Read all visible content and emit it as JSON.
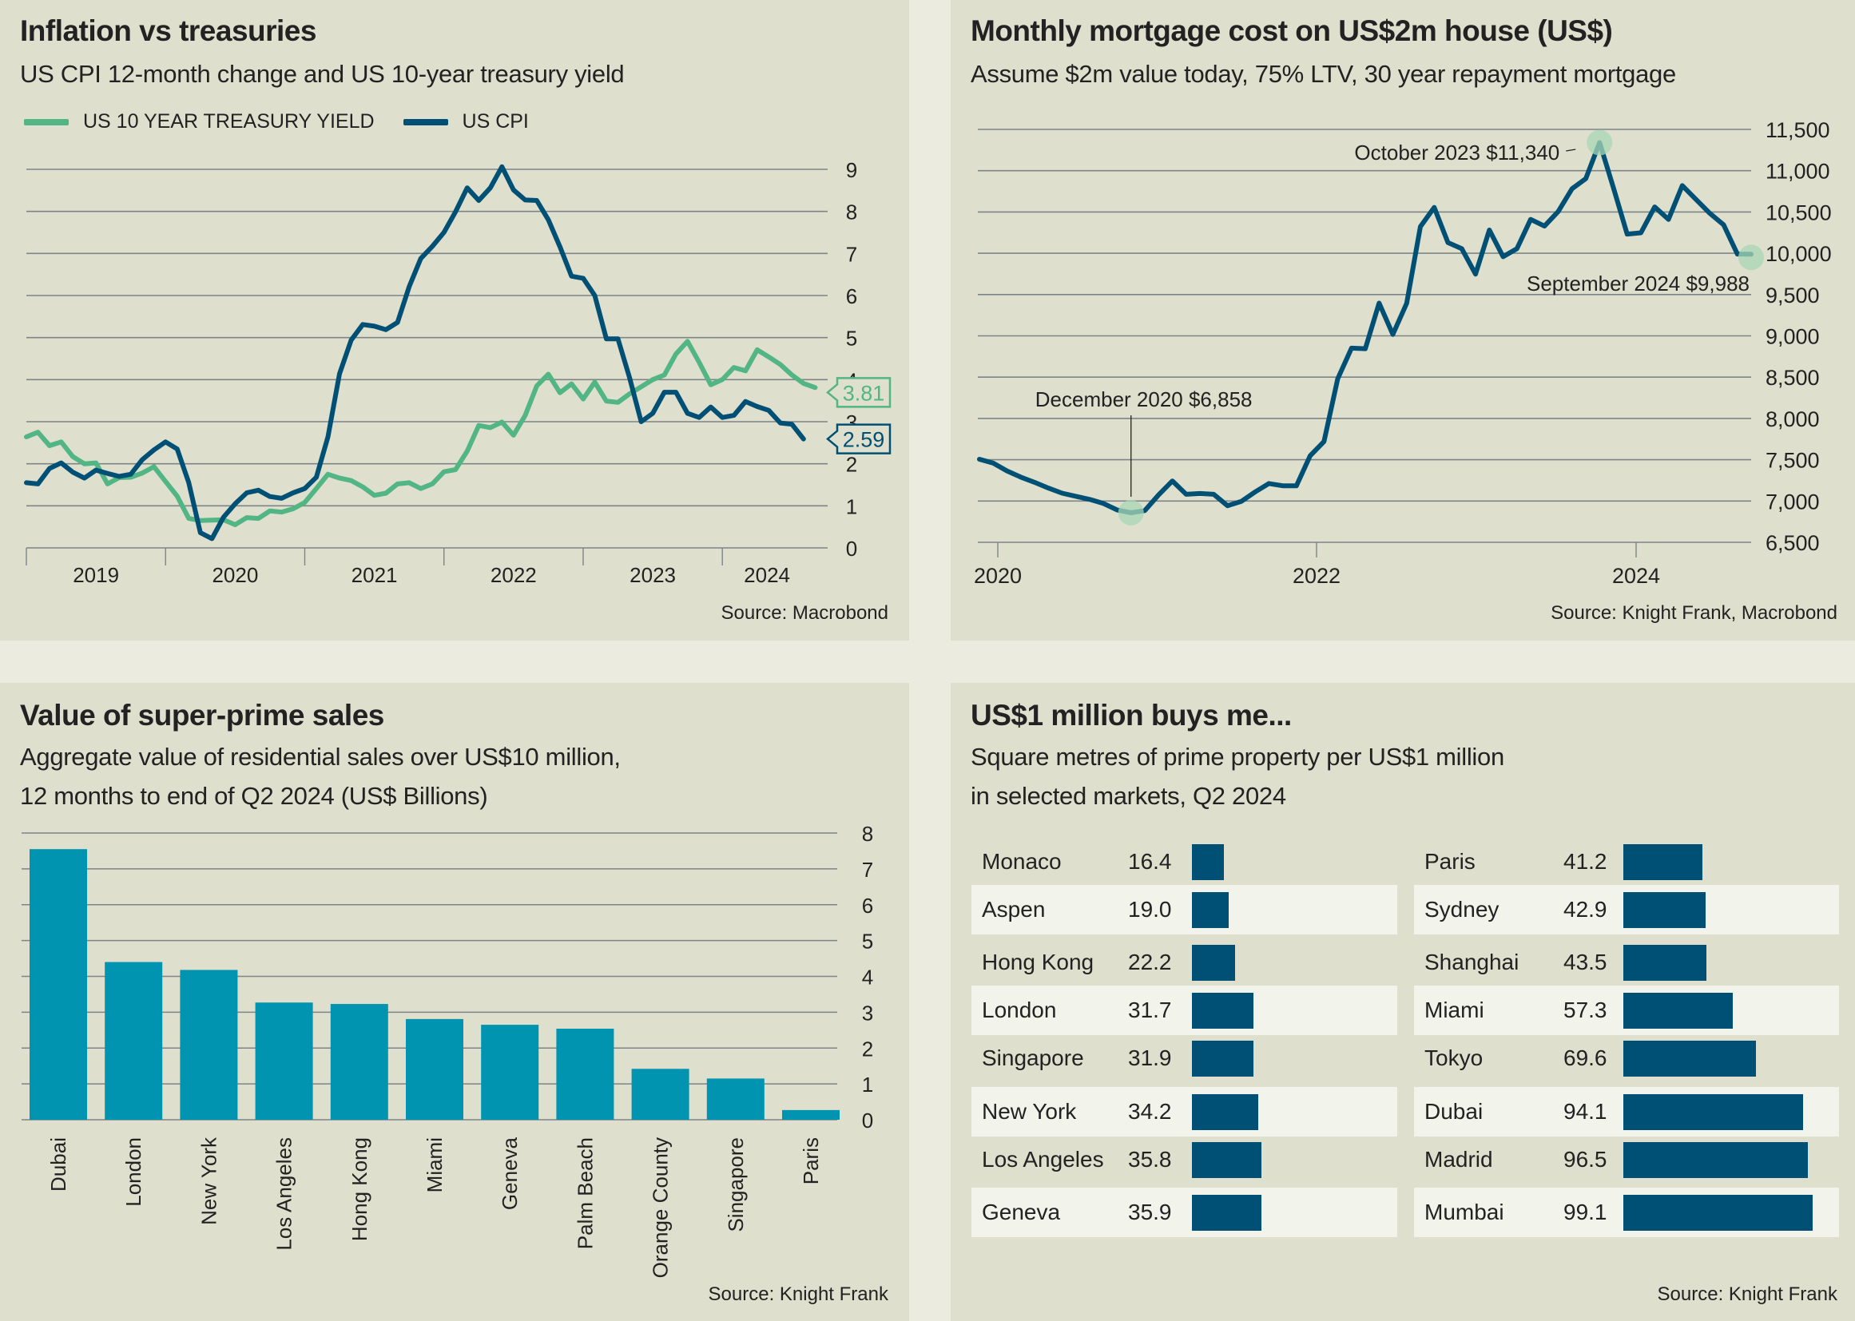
{
  "colors": {
    "treasury": "#52b584",
    "cpi": "#005075",
    "bar_teal": "#0094b0",
    "bar_navy": "#005075",
    "grid": "#7d8489",
    "highlight": "#a9d7b4"
  },
  "chart_data": [
    {
      "id": "inflation",
      "type": "line",
      "title": "Inflation vs treasuries",
      "subtitle": "US CPI 12-month change and US 10-year treasury yield",
      "source": "Source: Macrobond",
      "legend_position": "top-left",
      "x_start": "2019-01",
      "x_ticks": [
        "2019",
        "2020",
        "2021",
        "2022",
        "2023",
        "2024"
      ],
      "ylim": [
        0,
        9
      ],
      "yticks": [
        0,
        1,
        2,
        3,
        4,
        5,
        6,
        7,
        8,
        9
      ],
      "grid": true,
      "series": [
        {
          "name": "US 10 YEAR TREASURY YIELD",
          "color_key": "treasury",
          "end_label": "3.81",
          "values": [
            2.64,
            2.75,
            2.43,
            2.52,
            2.17,
            2.0,
            2.02,
            1.52,
            1.67,
            1.68,
            1.78,
            1.93,
            1.58,
            1.23,
            0.7,
            0.65,
            0.66,
            0.67,
            0.55,
            0.72,
            0.7,
            0.88,
            0.85,
            0.93,
            1.08,
            1.41,
            1.75,
            1.66,
            1.6,
            1.45,
            1.25,
            1.3,
            1.52,
            1.55,
            1.41,
            1.52,
            1.81,
            1.86,
            2.3,
            2.91,
            2.86,
            2.99,
            2.68,
            3.15,
            3.85,
            4.13,
            3.69,
            3.9,
            3.54,
            3.94,
            3.49,
            3.46,
            3.66,
            3.83,
            4.0,
            4.11,
            4.61,
            4.91,
            4.41,
            3.88,
            4.0,
            4.29,
            4.21,
            4.71,
            4.54,
            4.36,
            4.11,
            3.91,
            3.81
          ]
        },
        {
          "name": "US CPI",
          "color_key": "cpi",
          "end_label": "2.59",
          "values": [
            1.55,
            1.52,
            1.89,
            2.02,
            1.8,
            1.66,
            1.85,
            1.77,
            1.7,
            1.75,
            2.1,
            2.33,
            2.52,
            2.35,
            1.55,
            0.36,
            0.22,
            0.73,
            1.05,
            1.31,
            1.37,
            1.22,
            1.18,
            1.31,
            1.41,
            1.68,
            2.64,
            4.14,
            4.94,
            5.31,
            5.27,
            5.19,
            5.36,
            6.21,
            6.88,
            7.17,
            7.5,
            7.99,
            8.56,
            8.26,
            8.56,
            9.06,
            8.51,
            8.27,
            8.26,
            7.8,
            7.16,
            6.46,
            6.41,
            6.0,
            4.97,
            4.97,
            4.05,
            3.0,
            3.2,
            3.7,
            3.7,
            3.2,
            3.1,
            3.35,
            3.1,
            3.15,
            3.48,
            3.36,
            3.27,
            2.97,
            2.94,
            2.59
          ]
        }
      ]
    },
    {
      "id": "mortgage",
      "type": "line",
      "title": "Monthly mortgage cost on US$2m house (US$)",
      "subtitle": "Assume $2m value today, 75% LTV, 30 year repayment mortgage",
      "source": "Source: Knight Frank, Macrobond",
      "x_start": "2020-01",
      "x_ticks": [
        "2020",
        "2022",
        "2024"
      ],
      "ylim": [
        6500,
        11500
      ],
      "yticks": [
        6500,
        7000,
        7500,
        8000,
        8500,
        9000,
        9500,
        10000,
        10500,
        11000,
        11500
      ],
      "ytick_labels": [
        "6,500",
        "7,000",
        "7,500",
        "8,000",
        "8,500",
        "9,000",
        "9,500",
        "10,000",
        "10,500",
        "11,000",
        "11,500"
      ],
      "grid": true,
      "series": [
        {
          "name": "Monthly mortgage cost",
          "color_key": "cpi",
          "values": [
            7506,
            7458,
            7365,
            7289,
            7226,
            7157,
            7095,
            7057,
            7019,
            6970,
            6891,
            6858,
            6884,
            7074,
            7243,
            7081,
            7091,
            7081,
            6943,
            6995,
            7109,
            7212,
            7185,
            7185,
            7548,
            7720,
            8481,
            8851,
            8844,
            9397,
            9017,
            9394,
            10323,
            10555,
            10129,
            10055,
            9748,
            10281,
            9958,
            10055,
            10410,
            10329,
            10506,
            10781,
            10903,
            11340,
            10797,
            10232,
            10248,
            10561,
            10410,
            10819,
            10652,
            10484,
            10345,
            9990,
            9988
          ]
        }
      ],
      "annotations": [
        {
          "label": "December 2020 $6,858",
          "index": 11,
          "value": 6858
        },
        {
          "label": "October 2023 $11,340",
          "index": 45,
          "value": 11340
        },
        {
          "label": "September 2024 $9,988",
          "index": 56,
          "value": 9988
        }
      ]
    },
    {
      "id": "super_prime",
      "type": "bar",
      "title": "Value of super-prime sales",
      "subtitle_lines": [
        "Aggregate value of residential sales over US$10 million,",
        "12 months to end of Q2 2024 (US$ Billions)"
      ],
      "source": "Source: Knight Frank",
      "categories": [
        "Dubai",
        "London",
        "New York",
        "Los Angeles",
        "Hong Kong",
        "Miami",
        "Geneva",
        "Palm Beach",
        "Orange County",
        "Singapore",
        "Paris"
      ],
      "values": [
        7.55,
        4.4,
        4.18,
        3.27,
        3.23,
        2.81,
        2.65,
        2.54,
        1.42,
        1.15,
        0.27
      ],
      "ylabel": "US$ Billions",
      "ylim": [
        0,
        8
      ],
      "yticks": [
        0,
        1,
        2,
        3,
        4,
        5,
        6,
        7,
        8
      ],
      "grid": true
    },
    {
      "id": "million_buys",
      "type": "bar",
      "orientation": "horizontal",
      "title": "US$1 million buys me...",
      "subtitle_lines": [
        "Square metres of prime property per US$1 million",
        "in selected markets, Q2 2024"
      ],
      "source": "Source: Knight Frank",
      "xmax": 100,
      "columns": [
        {
          "rows": [
            {
              "market": "Monaco",
              "value": 16.4,
              "label": "16.4"
            },
            {
              "market": "Aspen",
              "value": 19.0,
              "label": "19.0"
            },
            {
              "market": "Hong Kong",
              "value": 22.2,
              "label": "22.2"
            },
            {
              "market": "London",
              "value": 31.7,
              "label": "31.7"
            },
            {
              "market": "Singapore",
              "value": 31.9,
              "label": "31.9"
            },
            {
              "market": "New York",
              "value": 34.2,
              "label": "34.2"
            },
            {
              "market": "Los Angeles",
              "value": 35.8,
              "label": "35.8"
            },
            {
              "market": "Geneva",
              "value": 35.9,
              "label": "35.9"
            }
          ]
        },
        {
          "rows": [
            {
              "market": "Paris",
              "value": 41.2,
              "label": "41.2"
            },
            {
              "market": "Sydney",
              "value": 42.9,
              "label": "42.9"
            },
            {
              "market": "Shanghai",
              "value": 43.5,
              "label": "43.5"
            },
            {
              "market": "Miami",
              "value": 57.3,
              "label": "57.3"
            },
            {
              "market": "Tokyo",
              "value": 69.6,
              "label": "69.6"
            },
            {
              "market": "Dubai",
              "value": 94.1,
              "label": "94.1"
            },
            {
              "market": "Madrid",
              "value": 96.5,
              "label": "96.5"
            },
            {
              "market": "Mumbai",
              "value": 99.1,
              "label": "99.1"
            }
          ]
        }
      ]
    }
  ]
}
